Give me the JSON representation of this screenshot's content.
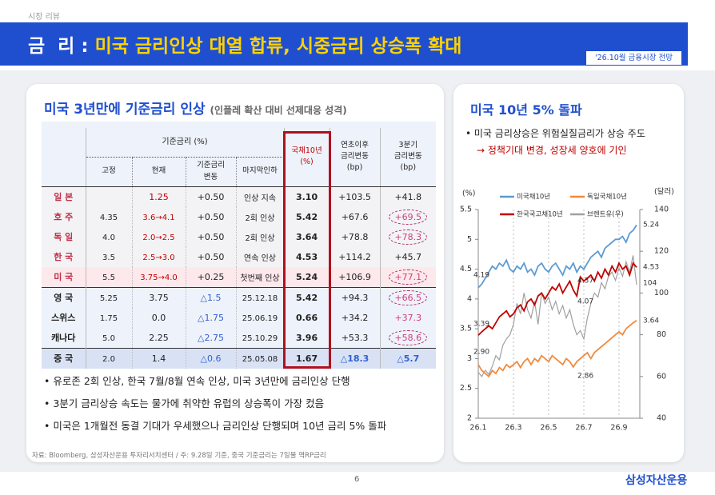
{
  "header": {
    "kicker": "시장 리뷰",
    "section": "금  리 :",
    "title": "미국 금리인상 대열 합류, 시중금리 상승폭 확대",
    "tag": "'26.10월 금융시장 전망"
  },
  "left": {
    "title": "미국 3년만에 기준금리 인상",
    "subtitle": "(인플레 확산 대비 선제대응 성격)",
    "table": {
      "group": "기준금리 (%)",
      "subheads": [
        "고정",
        "현재",
        "기준금리\n변동",
        "마지막인하"
      ],
      "heads": [
        "국채10년\n(%)",
        "연초이후\n금리변동\n(bp)",
        "3분기\n금리변동\n(bp)"
      ],
      "rows": [
        [
          "일  본",
          null,
          "1.25",
          "+0.50",
          "인상 지속",
          "3.10",
          "+103.5",
          "+41.8"
        ],
        [
          "호  주",
          "4.35",
          "3.6→4.1",
          "+0.50",
          "2회 인상",
          "5.42",
          "+67.6",
          "+69.5"
        ],
        [
          "독  일",
          "4.0",
          "2.0→2.5",
          "+0.50",
          "2회 인상",
          "3.64",
          "+78.8",
          "+78.3"
        ],
        [
          "한  국",
          "3.5",
          "2.5→3.0",
          "+0.50",
          "연속 인상",
          "4.53",
          "+114.2",
          "+45.7"
        ],
        [
          "미  국",
          "5.5",
          "3.75→4.0",
          "+0.25",
          "첫번째 인상",
          "5.24",
          "+106.9",
          "+77.1"
        ],
        [
          "영  국",
          "5.25",
          "3.75",
          "△1.5",
          "25.12.18",
          "5.42",
          "+94.3",
          "+66.5"
        ],
        [
          "스위스",
          "1.75",
          "0.0",
          "△1.75",
          "25.06.19",
          "0.66",
          "+34.2",
          "+37.3"
        ],
        [
          "캐나다",
          "5.0",
          "2.25",
          "△2.75",
          "25.10.29",
          "3.96",
          "+53.3",
          "+58.6"
        ],
        [
          "중  국",
          "2.0",
          "1.4",
          "△0.6",
          "25.05.08",
          "1.67",
          "△18.3",
          "△5.7"
        ]
      ]
    },
    "bullets": [
      "유로존 2회 인상, 한국 7월/8월 연속 인상, 미국 3년만에 금리인상 단행",
      "3분기 금리상승 속도는 물가에 취약한 유럽의 상승폭이 가장 컸음",
      "미국은 1개월전 동결 기대가 우세했으나 금리인상 단행되며 10년 금리 5% 돌파"
    ],
    "source": "자료: Bloomberg, 삼성자산운용 투자리서치센터 / 주: 9.28일 기준, 중국 기준금리는 7일물 역RP금리"
  },
  "right": {
    "title": "미국 10년 5% 돌파",
    "bullet": "• 미국 금리상승은 위험실질금리가 상승 주도",
    "arrow": "→ 정책기대 변경, 성장세 양호에 기인"
  },
  "chart_data": {
    "type": "line",
    "ylabel": "(%)",
    "y2label": "(달러)",
    "categories": [
      "26.1",
      null,
      null,
      null,
      null,
      null,
      null,
      null,
      null,
      null,
      "26.3",
      null,
      null,
      null,
      null,
      null,
      null,
      null,
      null,
      null,
      "26.5",
      null,
      null,
      null,
      null,
      null,
      null,
      null,
      null,
      null,
      "26.7",
      null,
      null,
      null,
      null,
      null,
      null,
      null,
      null,
      null,
      "26.9",
      null,
      null,
      null,
      null,
      null
    ],
    "ylim": [
      2,
      5.5
    ],
    "yticks": [
      2,
      2.5,
      3,
      3.5,
      4,
      4.5,
      5,
      5.5
    ],
    "y2lim": [
      40,
      140
    ],
    "y2ticks": [
      40,
      60,
      80,
      100,
      120,
      140
    ],
    "series": [
      {
        "name": "브렌트유(우)",
        "color": "#a0a0a0",
        "axis": "y2",
        "values": [
          62,
          60,
          63,
          61,
          65,
          70,
          68,
          75,
          78,
          80,
          85,
          95,
          90,
          100,
          92,
          88,
          96,
          85,
          100,
          95,
          98,
          92,
          96,
          90,
          94,
          88,
          92,
          85,
          80,
          82,
          78,
          88,
          95,
          100,
          98,
          105,
          102,
          108,
          110,
          106,
          112,
          108,
          115,
          110,
          118,
          104
        ]
      },
      {
        "name": "독일국채10년",
        "color": "#f08a3c",
        "values": [
          2.9,
          2.8,
          2.75,
          2.7,
          2.8,
          2.75,
          2.85,
          2.8,
          2.9,
          2.85,
          2.9,
          2.95,
          2.85,
          2.95,
          3.0,
          2.9,
          3.0,
          2.95,
          3.05,
          3.0,
          2.95,
          3.05,
          3.0,
          2.95,
          2.9,
          3.0,
          2.95,
          2.86,
          2.95,
          3.0,
          3.05,
          3.1,
          3.0,
          3.1,
          3.15,
          3.2,
          3.25,
          3.3,
          3.35,
          3.4,
          3.45,
          3.4,
          3.5,
          3.55,
          3.6,
          3.64
        ]
      },
      {
        "name": "한국국고채10년",
        "color": "#c00000",
        "values": [
          3.39,
          3.45,
          3.5,
          3.55,
          3.5,
          3.6,
          3.7,
          3.75,
          3.8,
          3.7,
          3.75,
          3.85,
          3.9,
          3.8,
          3.95,
          4.0,
          3.9,
          4.05,
          4.1,
          4.0,
          4.1,
          4.2,
          4.15,
          4.25,
          4.1,
          4.2,
          4.3,
          4.15,
          4.05,
          4.37,
          4.3,
          4.35,
          4.4,
          4.3,
          4.45,
          4.35,
          4.5,
          4.4,
          4.55,
          4.45,
          4.6,
          4.5,
          4.55,
          4.4,
          4.6,
          4.53
        ]
      },
      {
        "name": "미국채10년",
        "color": "#5b9bd5",
        "values": [
          4.19,
          4.25,
          4.35,
          4.45,
          4.55,
          4.5,
          4.6,
          4.55,
          4.65,
          4.5,
          4.45,
          4.55,
          4.5,
          4.6,
          4.45,
          4.5,
          4.4,
          4.55,
          4.6,
          4.5,
          4.45,
          4.55,
          4.6,
          4.5,
          4.4,
          4.55,
          4.5,
          4.6,
          4.45,
          4.55,
          4.5,
          4.6,
          4.7,
          4.75,
          4.8,
          4.7,
          4.85,
          4.9,
          4.95,
          5.0,
          5.0,
          5.05,
          4.95,
          5.1,
          5.15,
          5.24
        ]
      }
    ],
    "annotations": [
      "4.19",
      "3.39",
      "2.90",
      "5.24",
      "4.53",
      "3.64",
      "104",
      "4.37",
      "4.07",
      "2.86"
    ]
  },
  "footer": {
    "page": "6",
    "brand": "삼성자산운용"
  }
}
